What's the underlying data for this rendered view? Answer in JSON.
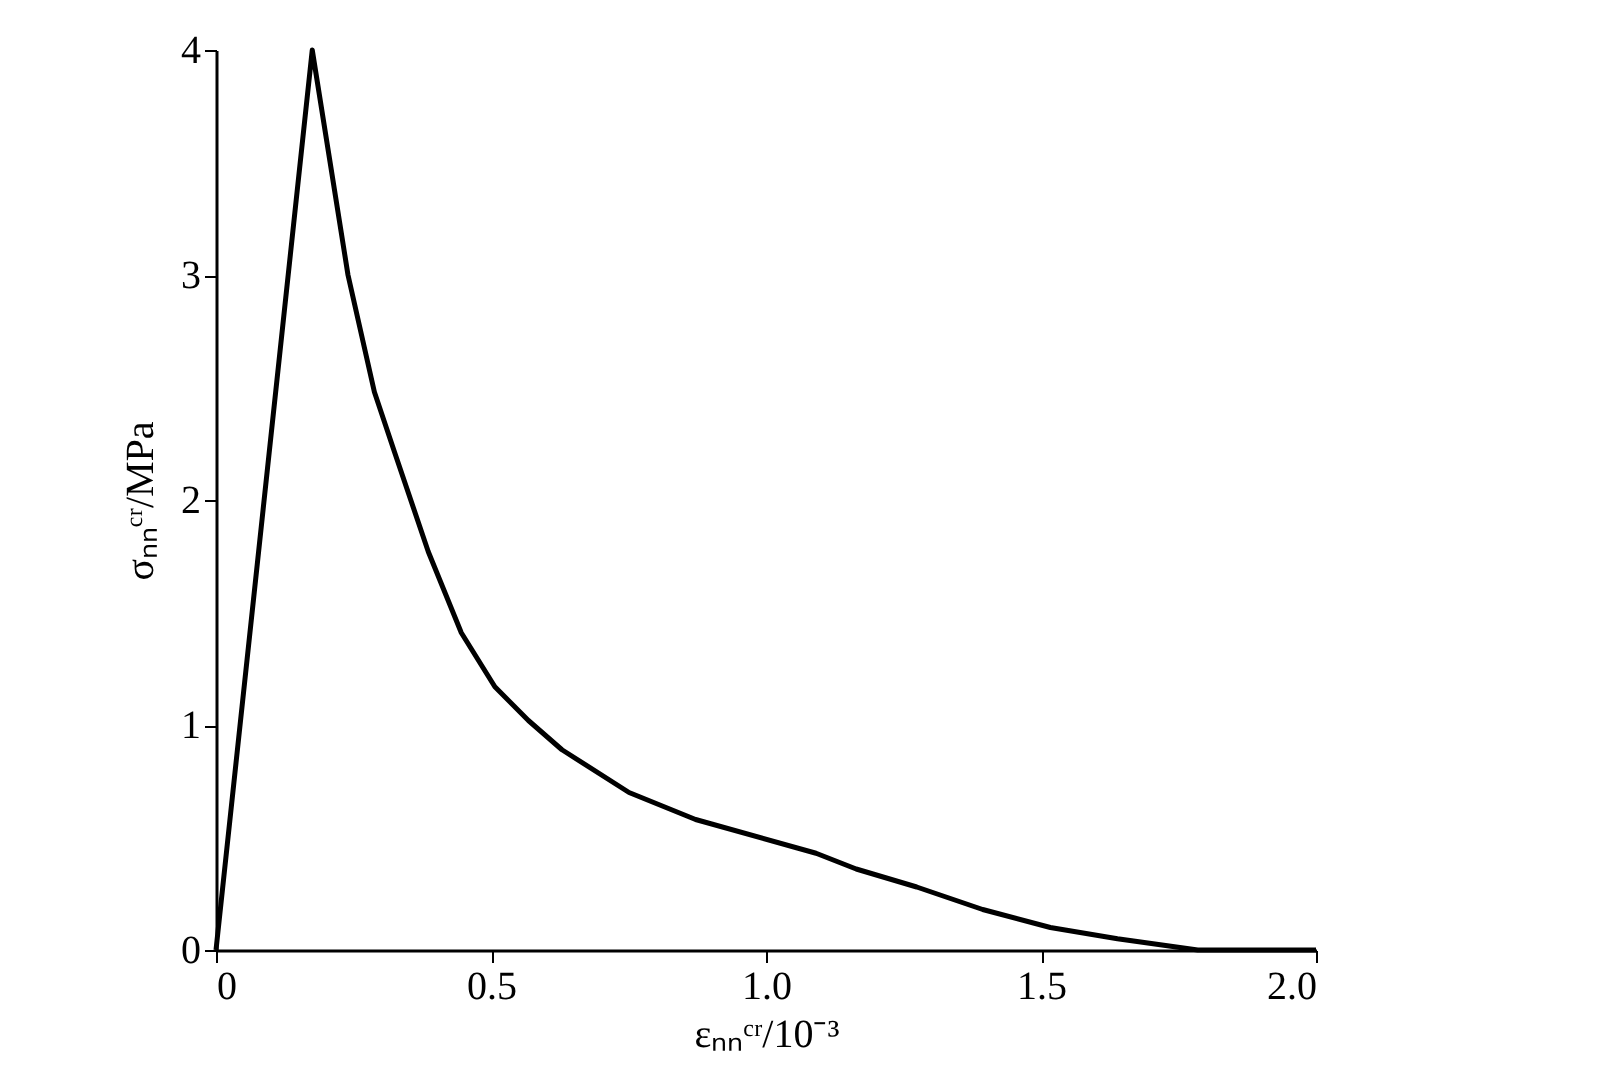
{
  "chart_data": {
    "type": "line",
    "xlabel": "εₙₙᶜʳ/10⁻³",
    "ylabel": "σₙₙᶜʳ/MPa",
    "series": [
      {
        "color": "#000000",
        "x": [
          0,
          0.175,
          0.24,
          0.288,
          0.325,
          0.386,
          0.446,
          0.507,
          0.568,
          0.629,
          0.751,
          0.872,
          1.091,
          1.164,
          1.274,
          1.394,
          1.517,
          1.639,
          1.785,
          2.0
        ],
        "values": [
          0,
          4.0,
          3.0,
          2.48,
          2.21,
          1.77,
          1.41,
          1.17,
          1.02,
          0.89,
          0.7,
          0.58,
          0.43,
          0.36,
          0.28,
          0.18,
          0.1,
          0.05,
          0,
          0
        ]
      }
    ],
    "xlim": [
      0,
      2.0
    ],
    "xticks": [
      0,
      {
        "value": 0.5,
        "label": "0.5"
      },
      {
        "value": 1.0,
        "label": "1.0"
      },
      {
        "value": 1.5,
        "label": "1.5"
      },
      {
        "value": 2.0,
        "label": "2.0"
      }
    ],
    "ylim": [
      0,
      4
    ],
    "yticks": [
      0,
      1,
      2,
      3,
      4
    ],
    "grid": false,
    "marker": "none",
    "line_style": "solid"
  }
}
